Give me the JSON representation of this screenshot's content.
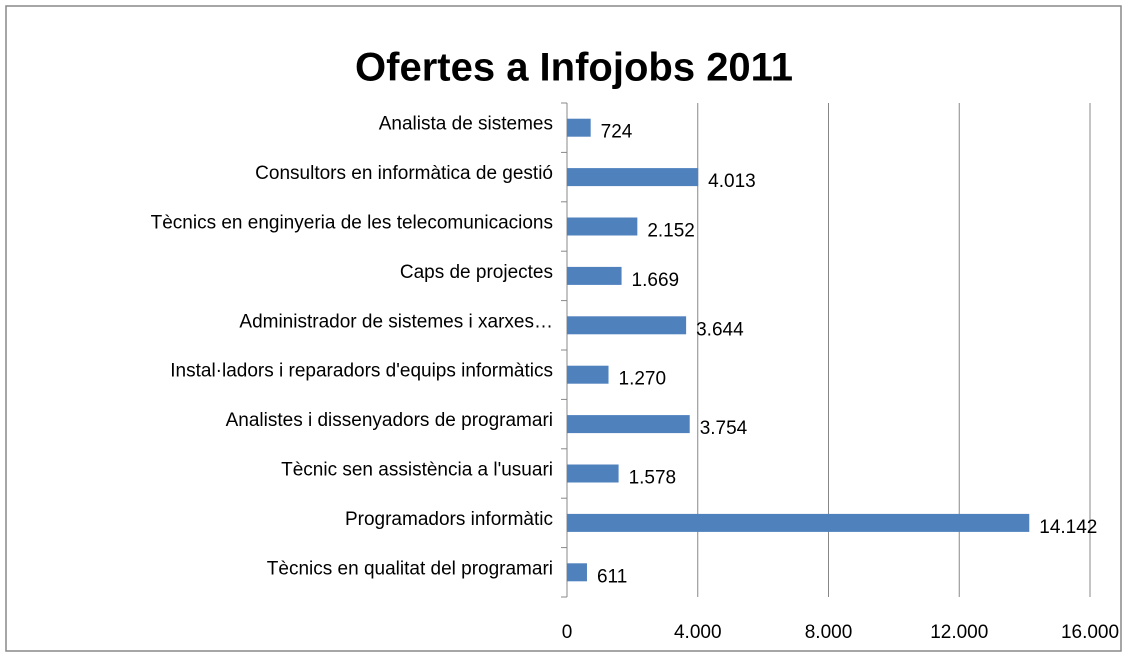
{
  "chart_data": {
    "type": "bar",
    "orientation": "horizontal",
    "title": "Ofertes a Infojobs 2011",
    "categories": [
      "Analista de sistemes",
      "Consultors en informàtica de gestió",
      "Tècnics en enginyeria de les telecomunicacions",
      "Caps de projectes",
      "Administrador de sistemes i xarxes…",
      "Instal·ladors i reparadors d'equips informàtics",
      "Analistes i dissenyadors de programari",
      "Tècnic sen assistència a l'usuari",
      "Programadors informàtic",
      "Tècnics en qualitat del programari"
    ],
    "values": [
      724,
      4013,
      2152,
      1669,
      3644,
      1270,
      3754,
      1578,
      14142,
      611
    ],
    "value_labels": [
      "724",
      "4.013",
      "2.152",
      "1.669",
      "3.644",
      "1.270",
      "3.754",
      "1.578",
      "14.142",
      "611"
    ],
    "color": "#4f81bd",
    "xlim": [
      0,
      16000
    ],
    "xticks": [
      0,
      {
        "value": 4000,
        "label": "4.000"
      },
      {
        "value": 8000,
        "label": "8.000"
      },
      {
        "value": 12000,
        "label": "12.000"
      },
      {
        "value": 16000,
        "label": "16.000"
      }
    ],
    "grid": true
  }
}
